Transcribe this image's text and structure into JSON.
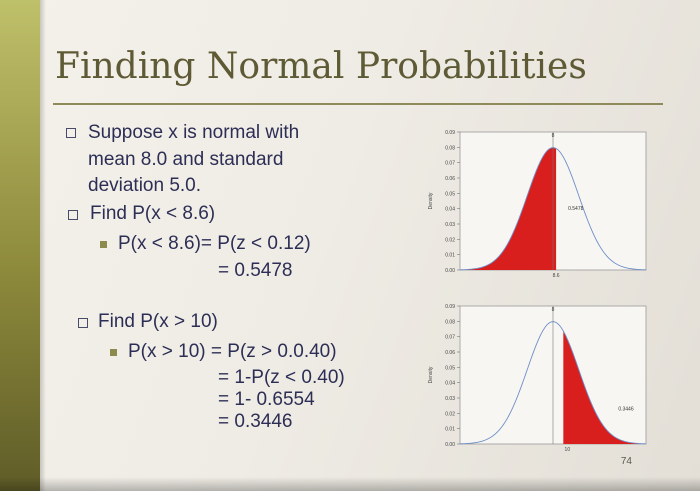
{
  "slide": {
    "title": "Finding Normal Probabilities",
    "page_number": "74",
    "lines": [
      {
        "kind": "bullet1",
        "text": "Suppose x is normal with"
      },
      {
        "kind": "cont",
        "text": "mean 8.0 and standard"
      },
      {
        "kind": "cont",
        "text": "deviation 5.0."
      },
      {
        "kind": "bullet1",
        "text": "Find P(x < 8.6)"
      },
      {
        "kind": "bullet2",
        "text": "P(x < 8.6)= P(z < 0.12)"
      },
      {
        "kind": "cont",
        "text": "= 0.5478"
      },
      {
        "kind": "bullet1",
        "text": "Find P(x > 10)"
      },
      {
        "kind": "bullet2",
        "text": "P(x > 10) = P(z > 0.0.40)"
      },
      {
        "kind": "cont",
        "text": "= 1-P(z < 0.40)"
      },
      {
        "kind": "cont",
        "text": "= 1- 0.6554"
      },
      {
        "kind": "cont",
        "text": "= 0.3446"
      }
    ]
  },
  "chart_data": [
    {
      "type": "area",
      "distribution": "normal",
      "mean": 8.0,
      "sd": 5.0,
      "shaded": "left",
      "cutoff": 8.6,
      "ylabel": "Density",
      "yticks": [
        "0.09",
        "0.08",
        "0.07",
        "0.06",
        "0.05",
        "0.04",
        "0.03",
        "0.02",
        "0.01",
        "0.00"
      ],
      "ylim": [
        0,
        0.09
      ],
      "cutoff_label": "8.6",
      "area_label": "0.5478",
      "mean_label": "8",
      "fill_color": "#d91e1e",
      "curve_color": "#6f8fc9"
    },
    {
      "type": "area",
      "distribution": "normal",
      "mean": 8.0,
      "sd": 5.0,
      "shaded": "right",
      "cutoff": 10,
      "ylabel": "Density",
      "yticks": [
        "0.09",
        "0.08",
        "0.07",
        "0.06",
        "0.05",
        "0.04",
        "0.03",
        "0.02",
        "0.01",
        "0.00"
      ],
      "ylim": [
        0,
        0.09
      ],
      "cutoff_label": "10",
      "area_label": "0.3446",
      "mean_label": "8",
      "fill_color": "#d91e1e",
      "curve_color": "#6f8fc9"
    }
  ]
}
